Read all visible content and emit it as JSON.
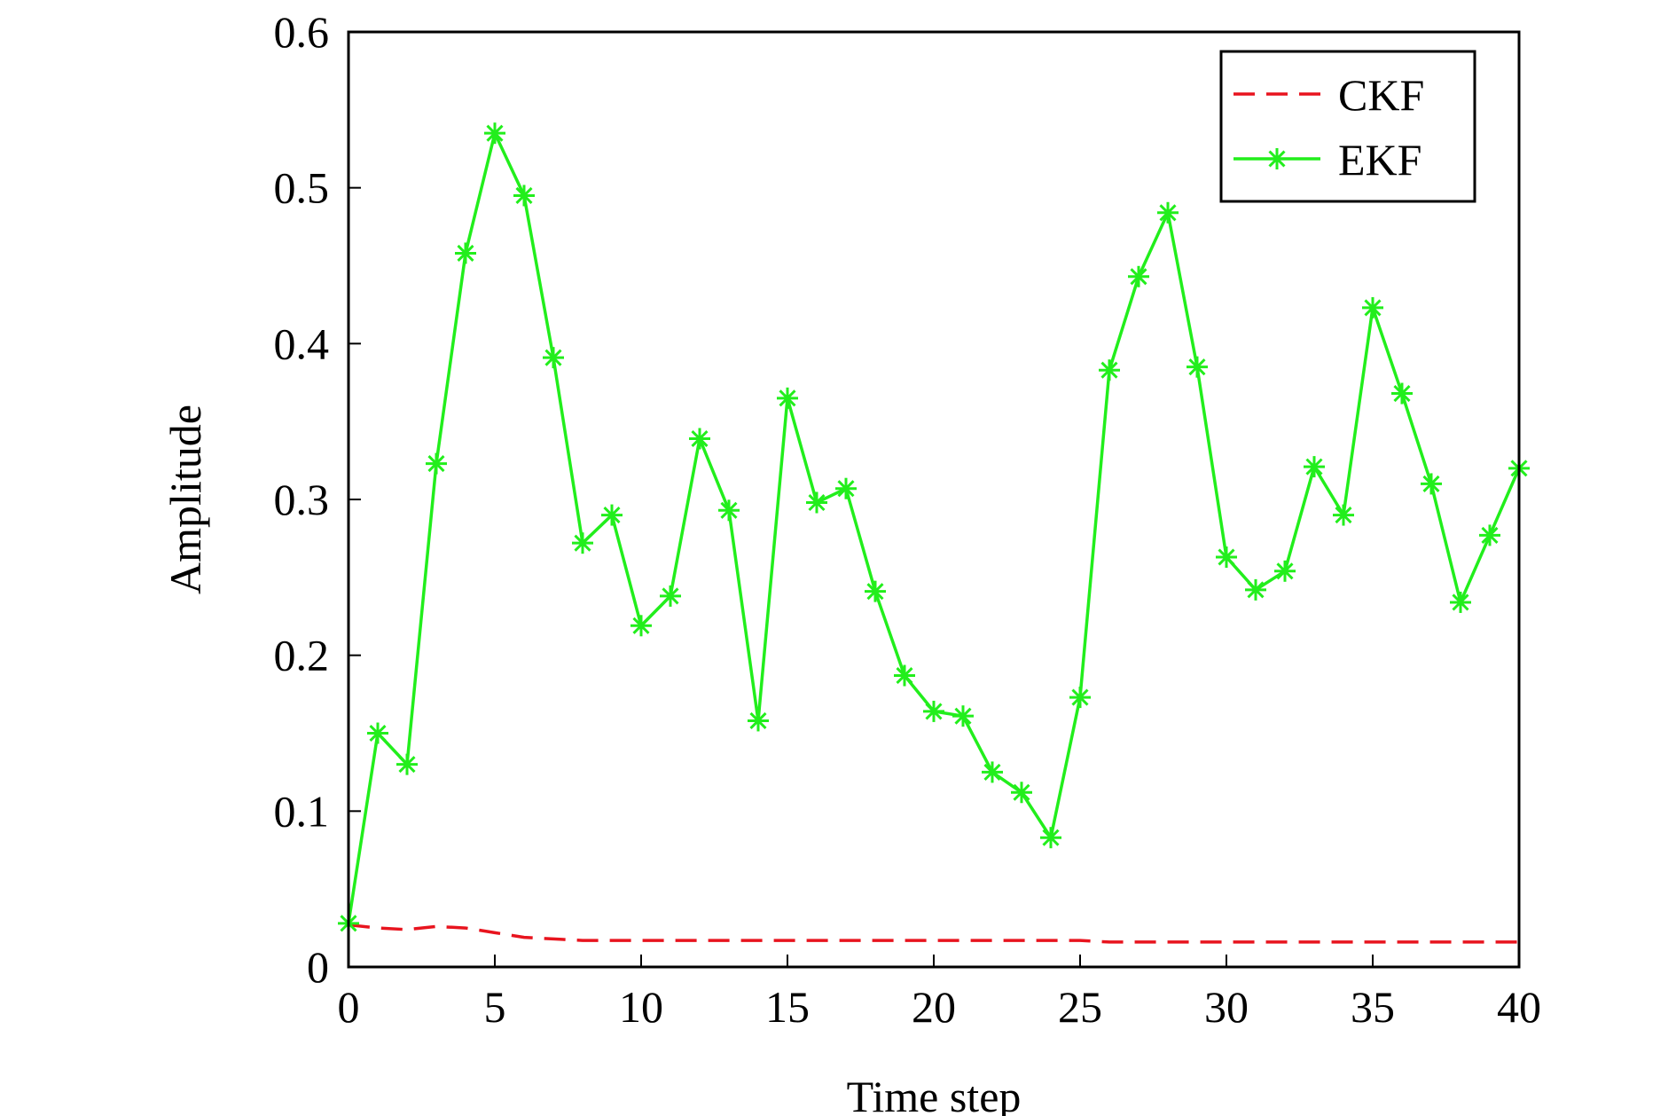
{
  "chart_data": {
    "type": "line",
    "xlabel": "Time step",
    "ylabel": "Amplitude",
    "xlim": [
      0,
      40
    ],
    "ylim": [
      0,
      0.6
    ],
    "xticks": [
      "0",
      "5",
      "10",
      "15",
      "20",
      "25",
      "30",
      "35",
      "40"
    ],
    "yticks": [
      "0",
      "0.1",
      "0.2",
      "0.3",
      "0.4",
      "0.5",
      "0.6"
    ],
    "grid": false,
    "legend_position": "top-right",
    "series": [
      {
        "name": "CKF",
        "color": "#e8141e",
        "style": "dashed",
        "marker": "none",
        "x": [
          0,
          1,
          2,
          3,
          4,
          5,
          6,
          7,
          8,
          9,
          10,
          11,
          12,
          13,
          14,
          15,
          16,
          17,
          18,
          19,
          20,
          21,
          22,
          23,
          24,
          25,
          26,
          27,
          28,
          29,
          30,
          31,
          32,
          33,
          34,
          35,
          36,
          37,
          38,
          39,
          40
        ],
        "values": [
          0.027,
          0.025,
          0.024,
          0.026,
          0.025,
          0.022,
          0.019,
          0.018,
          0.017,
          0.017,
          0.017,
          0.017,
          0.017,
          0.017,
          0.017,
          0.017,
          0.017,
          0.017,
          0.017,
          0.017,
          0.017,
          0.017,
          0.017,
          0.017,
          0.017,
          0.017,
          0.016,
          0.016,
          0.016,
          0.016,
          0.016,
          0.016,
          0.016,
          0.016,
          0.016,
          0.016,
          0.016,
          0.016,
          0.016,
          0.016,
          0.016
        ]
      },
      {
        "name": "EKF",
        "color": "#22ee1c",
        "style": "solid",
        "marker": "asterisk",
        "x": [
          0,
          1,
          2,
          3,
          4,
          5,
          6,
          7,
          8,
          9,
          10,
          11,
          12,
          13,
          14,
          15,
          16,
          17,
          18,
          19,
          20,
          21,
          22,
          23,
          24,
          25,
          26,
          27,
          28,
          29,
          30,
          31,
          32,
          33,
          34,
          35,
          36,
          37,
          38,
          39,
          40
        ],
        "values": [
          0.028,
          0.15,
          0.13,
          0.323,
          0.458,
          0.535,
          0.495,
          0.391,
          0.272,
          0.29,
          0.219,
          0.238,
          0.339,
          0.293,
          0.158,
          0.365,
          0.298,
          0.307,
          0.241,
          0.187,
          0.164,
          0.161,
          0.125,
          0.112,
          0.083,
          0.173,
          0.383,
          0.443,
          0.484,
          0.385,
          0.263,
          0.242,
          0.254,
          0.321,
          0.29,
          0.423,
          0.368,
          0.31,
          0.234,
          0.277,
          0.32
        ]
      }
    ]
  }
}
